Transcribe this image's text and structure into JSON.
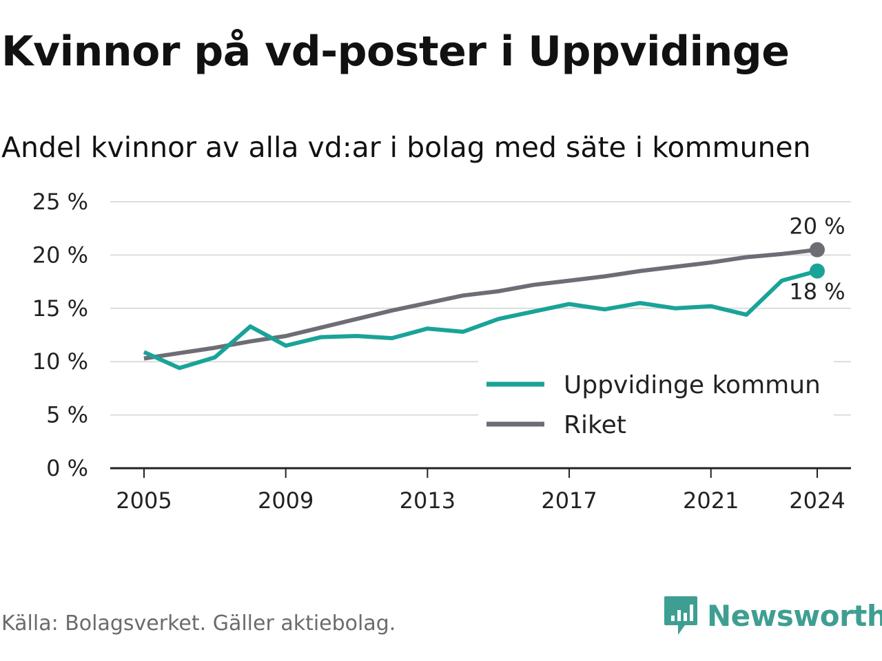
{
  "title": "Kvinnor på vd-poster i Uppvidinge",
  "subtitle": "Andel kvinnor av alla vd:ar i bolag med säte i kommunen",
  "source": "Källa: Bolagsverket. Gäller aktiebolag.",
  "brand": {
    "name": "Newsworthy",
    "icon": "newsworthy-logo-icon",
    "color": "#3f9e92"
  },
  "colors": {
    "kommun": "#1aa398",
    "riket": "#6e6d75",
    "grid": "#dcdcdc",
    "axis": "#222222"
  },
  "chart_data": {
    "type": "line",
    "x": [
      2005,
      2006,
      2007,
      2008,
      2009,
      2010,
      2011,
      2012,
      2013,
      2014,
      2015,
      2016,
      2017,
      2018,
      2019,
      2020,
      2021,
      2022,
      2023,
      2024
    ],
    "series": [
      {
        "name": "Uppvidinge kommun",
        "color": "#1aa398",
        "values": [
          10.9,
          9.4,
          10.4,
          13.3,
          11.5,
          12.3,
          12.4,
          12.2,
          13.1,
          12.8,
          14.0,
          14.7,
          15.4,
          14.9,
          15.5,
          15.0,
          15.2,
          14.4,
          17.6,
          18.5
        ],
        "end_label": "18 %"
      },
      {
        "name": "Riket",
        "color": "#6e6d75",
        "values": [
          10.3,
          10.8,
          11.3,
          11.9,
          12.4,
          13.2,
          14.0,
          14.8,
          15.5,
          16.2,
          16.6,
          17.2,
          17.6,
          18.0,
          18.5,
          18.9,
          19.3,
          19.8,
          20.1,
          20.5
        ],
        "end_label": "20 %"
      }
    ],
    "y_ticks": [
      "0 %",
      "5 %",
      "10 %",
      "15 %",
      "20 %",
      "25 %"
    ],
    "y_tick_values": [
      0,
      5,
      10,
      15,
      20,
      25
    ],
    "x_ticks": [
      "2005",
      "2009",
      "2013",
      "2017",
      "2021",
      "2024"
    ],
    "x_tick_values": [
      2005,
      2009,
      2013,
      2017,
      2021,
      2024
    ],
    "ylim": [
      0,
      25
    ],
    "xlim": [
      2005,
      2024
    ],
    "grid": true,
    "legend_position": "bottom-right"
  }
}
